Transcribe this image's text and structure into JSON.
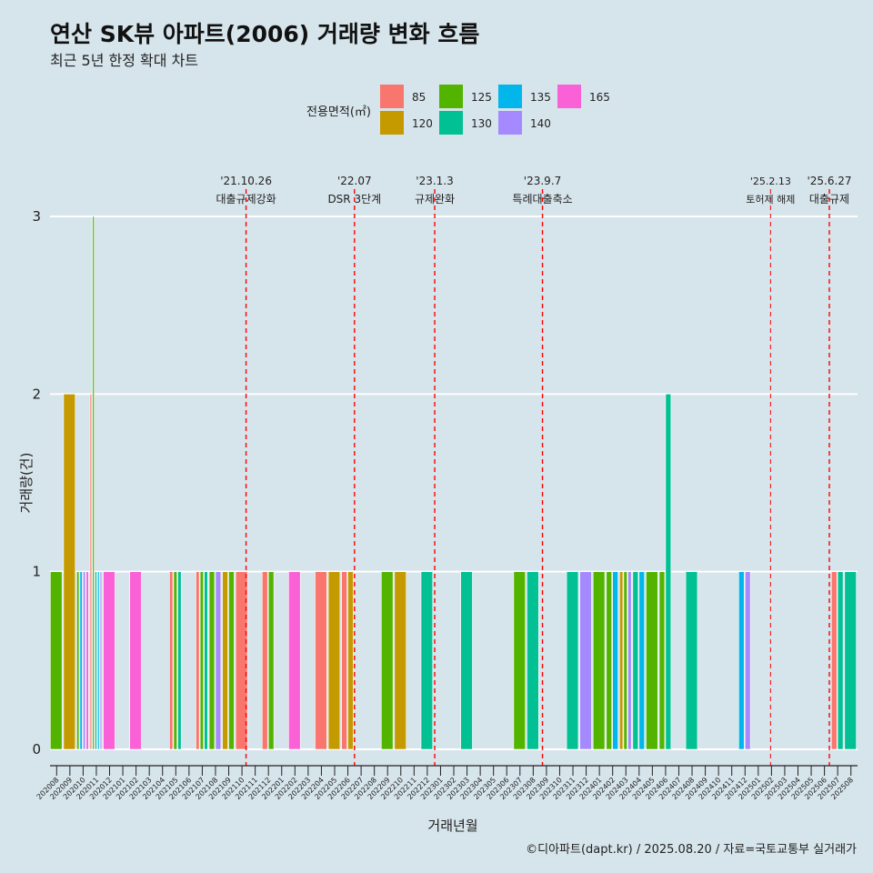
{
  "title": "연산 SK뷰 아파트(2006) 거래량 변화 흐름",
  "subtitle": "최근 5년 한정 확대 차트",
  "caption": "©디아파트(dapt.kr) / 2025.08.20 / 자료=국토교통부 실거래가",
  "chart_data": {
    "type": "bar",
    "xlabel": "거래년월",
    "ylabel": "거래량(건)",
    "ylim": [
      0,
      3
    ],
    "yticks": [
      0,
      1,
      2,
      3
    ],
    "legend_title": "전용면적(㎡)",
    "legend": [
      {
        "name": "85",
        "color": "#F8766D"
      },
      {
        "name": "120",
        "color": "#C49A00"
      },
      {
        "name": "125",
        "color": "#53B400"
      },
      {
        "name": "130",
        "color": "#00C094"
      },
      {
        "name": "135",
        "color": "#00B6EB"
      },
      {
        "name": "140",
        "color": "#A58AFF"
      },
      {
        "name": "165",
        "color": "#FB61D7"
      }
    ],
    "categories": [
      "202008",
      "202009",
      "202010",
      "202011",
      "202012",
      "202101",
      "202102",
      "202103",
      "202104",
      "202105",
      "202106",
      "202107",
      "202108",
      "202109",
      "202110",
      "202111",
      "202112",
      "202201",
      "202202",
      "202203",
      "202204",
      "202205",
      "202206",
      "202207",
      "202208",
      "202209",
      "202210",
      "202211",
      "202212",
      "202301",
      "202302",
      "202303",
      "202304",
      "202305",
      "202306",
      "202307",
      "202308",
      "202309",
      "202310",
      "202311",
      "202312",
      "202401",
      "202402",
      "202403",
      "202404",
      "202405",
      "202406",
      "202407",
      "202408",
      "202409",
      "202410",
      "202411",
      "202412",
      "202501",
      "202502",
      "202503",
      "202504",
      "202505",
      "202506",
      "202507",
      "202508"
    ],
    "bars": [
      {
        "month": "202008",
        "groups": [
          {
            "area": "125",
            "count": 1
          }
        ]
      },
      {
        "month": "202009",
        "groups": [
          {
            "area": "120",
            "count": 2
          }
        ]
      },
      {
        "month": "202010",
        "groups": [
          {
            "area": "125",
            "count": 1
          },
          {
            "area": "135",
            "count": 1
          },
          {
            "area": "140",
            "count": 1
          },
          {
            "area": "165",
            "count": 1
          }
        ]
      },
      {
        "month": "202011",
        "groups": [
          {
            "area": "85",
            "count": 2
          },
          {
            "area": "125",
            "count": 3
          },
          {
            "area": "130",
            "count": 1
          },
          {
            "area": "135",
            "count": 1
          },
          {
            "area": "140",
            "count": 1
          }
        ]
      },
      {
        "month": "202012",
        "groups": [
          {
            "area": "165",
            "count": 1
          }
        ]
      },
      {
        "month": "202102",
        "groups": [
          {
            "area": "165",
            "count": 1
          }
        ]
      },
      {
        "month": "202105",
        "groups": [
          {
            "area": "85",
            "count": 1
          },
          {
            "area": "125",
            "count": 1
          },
          {
            "area": "130",
            "count": 1
          }
        ]
      },
      {
        "month": "202107",
        "groups": [
          {
            "area": "85",
            "count": 1
          },
          {
            "area": "125",
            "count": 1
          },
          {
            "area": "130",
            "count": 1
          }
        ]
      },
      {
        "month": "202108",
        "groups": [
          {
            "area": "125",
            "count": 1
          },
          {
            "area": "140",
            "count": 1
          }
        ]
      },
      {
        "month": "202109",
        "groups": [
          {
            "area": "120",
            "count": 1
          },
          {
            "area": "125",
            "count": 1
          }
        ]
      },
      {
        "month": "202110",
        "groups": [
          {
            "area": "85",
            "count": 1
          }
        ]
      },
      {
        "month": "202112",
        "groups": [
          {
            "area": "85",
            "count": 1
          },
          {
            "area": "125",
            "count": 1
          }
        ]
      },
      {
        "month": "202202",
        "groups": [
          {
            "area": "165",
            "count": 1
          }
        ]
      },
      {
        "month": "202204",
        "groups": [
          {
            "area": "85",
            "count": 1
          }
        ]
      },
      {
        "month": "202205",
        "groups": [
          {
            "area": "120",
            "count": 1
          }
        ]
      },
      {
        "month": "202206",
        "groups": [
          {
            "area": "85",
            "count": 1
          },
          {
            "area": "120",
            "count": 1
          }
        ]
      },
      {
        "month": "202209",
        "groups": [
          {
            "area": "125",
            "count": 1
          }
        ]
      },
      {
        "month": "202210",
        "groups": [
          {
            "area": "120",
            "count": 1
          }
        ]
      },
      {
        "month": "202212",
        "groups": [
          {
            "area": "130",
            "count": 1
          }
        ]
      },
      {
        "month": "202303",
        "groups": [
          {
            "area": "130",
            "count": 1
          }
        ]
      },
      {
        "month": "202307",
        "groups": [
          {
            "area": "125",
            "count": 1
          }
        ]
      },
      {
        "month": "202308",
        "groups": [
          {
            "area": "130",
            "count": 1
          }
        ]
      },
      {
        "month": "202311",
        "groups": [
          {
            "area": "130",
            "count": 1
          }
        ]
      },
      {
        "month": "202312",
        "groups": [
          {
            "area": "140",
            "count": 1
          }
        ]
      },
      {
        "month": "202401",
        "groups": [
          {
            "area": "125",
            "count": 1
          }
        ]
      },
      {
        "month": "202402",
        "groups": [
          {
            "area": "125",
            "count": 1
          },
          {
            "area": "135",
            "count": 1
          }
        ]
      },
      {
        "month": "202403",
        "groups": [
          {
            "area": "120",
            "count": 1
          },
          {
            "area": "125",
            "count": 1
          },
          {
            "area": "140",
            "count": 1
          }
        ]
      },
      {
        "month": "202404",
        "groups": [
          {
            "area": "130",
            "count": 1
          },
          {
            "area": "135",
            "count": 1
          }
        ]
      },
      {
        "month": "202405",
        "groups": [
          {
            "area": "125",
            "count": 1
          }
        ]
      },
      {
        "month": "202406",
        "groups": [
          {
            "area": "125",
            "count": 1
          },
          {
            "area": "130",
            "count": 2
          }
        ]
      },
      {
        "month": "202408",
        "groups": [
          {
            "area": "130",
            "count": 1
          }
        ]
      },
      {
        "month": "202412",
        "groups": [
          {
            "area": "135",
            "count": 1
          },
          {
            "area": "140",
            "count": 1
          }
        ]
      },
      {
        "month": "202507",
        "groups": [
          {
            "area": "85",
            "count": 1
          },
          {
            "area": "130",
            "count": 1
          }
        ]
      },
      {
        "month": "202508",
        "groups": [
          {
            "area": "130",
            "count": 1
          }
        ]
      }
    ],
    "events": [
      {
        "date": "'21.10.26",
        "label": "대출규제강화",
        "month": "202110",
        "fraction": 0.81
      },
      {
        "date": "'22.07",
        "label": "DSR 3단계",
        "month": "202207",
        "fraction": 0.0
      },
      {
        "date": "'23.1.3",
        "label": "규제완화",
        "month": "202301",
        "fraction": 0.06
      },
      {
        "date": "'23.9.7",
        "label": "특례대출축소",
        "month": "202309",
        "fraction": 0.2
      },
      {
        "date": "'25.2.13",
        "label": "토허제 해제",
        "month": "202502",
        "fraction": 0.43
      },
      {
        "date": "'25.6.27",
        "label": "대출규제",
        "month": "202506",
        "fraction": 0.87
      }
    ]
  }
}
